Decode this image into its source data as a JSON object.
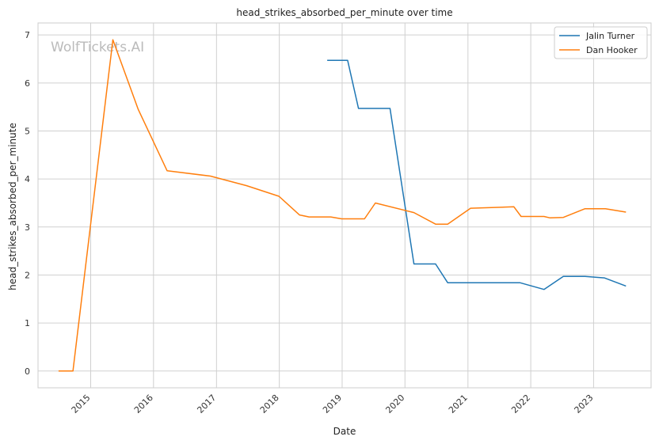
{
  "chart_data": {
    "type": "line",
    "title": "head_strikes_absorbed_per_minute over time",
    "xlabel": "Date",
    "ylabel": "head_strikes_absorbed_per_minute",
    "watermark": "WolfTickets.AI",
    "x_axis": "date",
    "xlim": [
      "2014-03-01",
      "2023-12-01"
    ],
    "ylim": [
      -0.35,
      7.25
    ],
    "x_ticks": [
      "2015",
      "2016",
      "2017",
      "2018",
      "2019",
      "2020",
      "2021",
      "2022",
      "2023"
    ],
    "y_ticks": [
      0,
      1,
      2,
      3,
      4,
      5,
      6,
      7
    ],
    "grid": true,
    "legend_position": "top-right",
    "series": [
      {
        "name": "Jalin Turner",
        "color": "#1f77b4",
        "points": [
          {
            "x": "2018-10-06",
            "y": 6.47
          },
          {
            "x": "2019-02-02",
            "y": 6.47
          },
          {
            "x": "2019-04-06",
            "y": 5.47
          },
          {
            "x": "2019-10-06",
            "y": 5.47
          },
          {
            "x": "2020-02-22",
            "y": 2.23
          },
          {
            "x": "2020-06-27",
            "y": 2.23
          },
          {
            "x": "2020-09-05",
            "y": 1.84
          },
          {
            "x": "2021-10-30",
            "y": 1.84
          },
          {
            "x": "2022-03-19",
            "y": 1.7
          },
          {
            "x": "2022-07-09",
            "y": 1.97
          },
          {
            "x": "2022-11-12",
            "y": 1.97
          },
          {
            "x": "2023-03-04",
            "y": 1.94
          },
          {
            "x": "2023-07-08",
            "y": 1.77
          }
        ]
      },
      {
        "name": "Dan Hooker",
        "color": "#ff7f0e",
        "points": [
          {
            "x": "2014-06-28",
            "y": 0.0
          },
          {
            "x": "2014-09-20",
            "y": 0.0
          },
          {
            "x": "2015-05-10",
            "y": 6.9
          },
          {
            "x": "2015-10-04",
            "y": 5.45
          },
          {
            "x": "2016-03-20",
            "y": 4.17
          },
          {
            "x": "2016-11-27",
            "y": 4.06
          },
          {
            "x": "2017-06-25",
            "y": 3.86
          },
          {
            "x": "2017-12-30",
            "y": 3.64
          },
          {
            "x": "2018-04-28",
            "y": 3.25
          },
          {
            "x": "2018-06-23",
            "y": 3.21
          },
          {
            "x": "2018-10-27",
            "y": 3.21
          },
          {
            "x": "2018-12-29",
            "y": 3.17
          },
          {
            "x": "2019-05-11",
            "y": 3.17
          },
          {
            "x": "2019-07-13",
            "y": 3.5
          },
          {
            "x": "2020-02-22",
            "y": 3.3
          },
          {
            "x": "2020-06-27",
            "y": 3.06
          },
          {
            "x": "2020-09-05",
            "y": 3.06
          },
          {
            "x": "2021-01-16",
            "y": 3.39
          },
          {
            "x": "2021-09-25",
            "y": 3.42
          },
          {
            "x": "2021-11-06",
            "y": 3.22
          },
          {
            "x": "2022-03-19",
            "y": 3.22
          },
          {
            "x": "2022-04-23",
            "y": 3.19
          },
          {
            "x": "2022-07-09",
            "y": 3.2
          },
          {
            "x": "2022-11-12",
            "y": 3.38
          },
          {
            "x": "2023-03-11",
            "y": 3.38
          },
          {
            "x": "2023-07-08",
            "y": 3.31
          }
        ]
      }
    ]
  }
}
